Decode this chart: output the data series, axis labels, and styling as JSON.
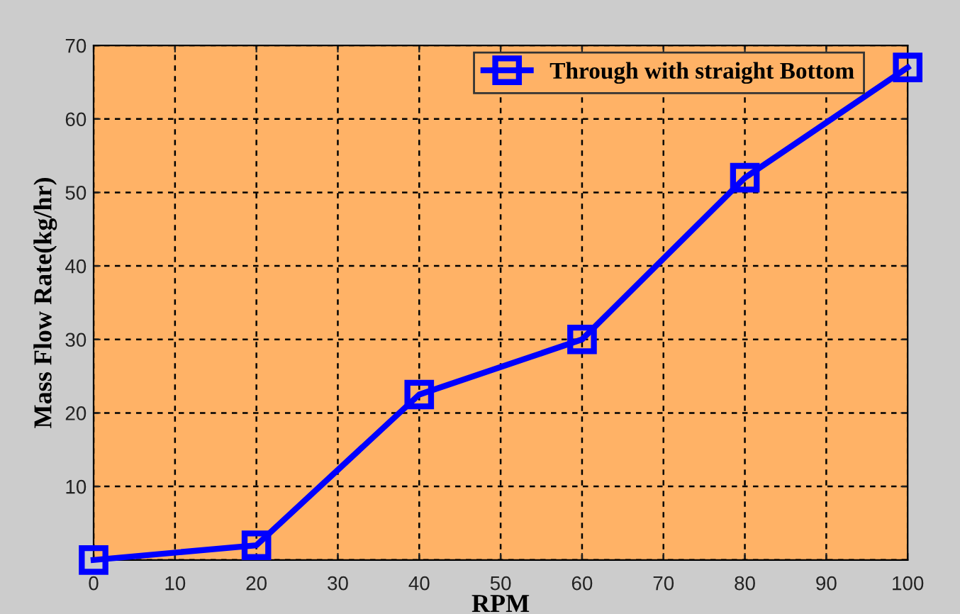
{
  "chart_data": {
    "type": "line",
    "xlabel": "RPM",
    "ylabel": "Mass Flow Rate(kg/hr)",
    "x": [
      0,
      20,
      40,
      60,
      80,
      100
    ],
    "series": [
      {
        "name": "Through with straight Bottom",
        "color": "#0000ff",
        "values": [
          0,
          2,
          22.5,
          30,
          52,
          67
        ]
      }
    ],
    "xlim": [
      0,
      100
    ],
    "xticks": [
      0,
      10,
      20,
      30,
      40,
      50,
      60,
      70,
      80,
      90,
      100
    ],
    "ylim": [
      0,
      70
    ],
    "yticks": [
      {
        "value": 0,
        "label": null
      },
      10,
      20,
      30,
      40,
      50,
      60,
      70
    ],
    "grid": true,
    "legend": "top right",
    "marker": "square",
    "line_style": "solid"
  }
}
